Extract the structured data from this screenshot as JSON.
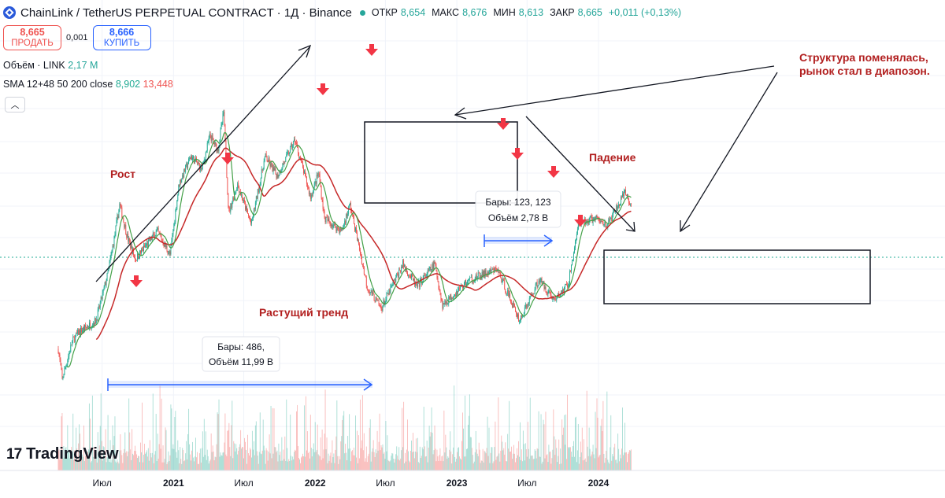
{
  "header": {
    "title": "ChainLink / TetherUS PERPETUAL CONTRACT · 1Д · Binance",
    "ohlc": [
      {
        "key": "ОТКР",
        "value": "8,654"
      },
      {
        "key": "МАКС",
        "value": "8,676"
      },
      {
        "key": "МИН",
        "value": "8,613"
      },
      {
        "key": "ЗАКР",
        "value": "8,665"
      }
    ],
    "change": "+0,011 (+0,13%)"
  },
  "trade": {
    "sell_price": "8,665",
    "sell_label": "ПРОДАТЬ",
    "spread": "0,001",
    "buy_price": "8,666",
    "buy_label": "КУПИТЬ"
  },
  "indicators": {
    "volume_label": "Объём · LINK",
    "volume_value": "2,17 M",
    "sma_label": "SMA 12+48 50 200 close",
    "sma_fast": "8,902",
    "sma_slow": "13,448"
  },
  "logo": {
    "text": "TradingView"
  },
  "colors": {
    "up": "#22ab94",
    "down": "#ef5350",
    "sma_fast": "#43a047",
    "sma_slow": "#c62828",
    "annotation_text": "#b22020",
    "arrow_marker": "#f23645",
    "range_line": "#2962ff"
  },
  "chart_data": {
    "type": "line",
    "instrument": "LINKUSDT.P",
    "timeframe": "1Д",
    "x_ticks": [
      "Июл",
      "2021",
      "Июл",
      "2022",
      "Июл",
      "2023",
      "Июл",
      "2024"
    ],
    "price_path_points": [
      {
        "date": "2020-03-10",
        "price": 3.5
      },
      {
        "date": "2020-03-20",
        "price": 2.5
      },
      {
        "date": "2020-04-15",
        "price": 3.8
      },
      {
        "date": "2020-05-01",
        "price": 4.2
      },
      {
        "date": "2020-06-15",
        "price": 4.8
      },
      {
        "date": "2020-07-15",
        "price": 8.0
      },
      {
        "date": "2020-08-01",
        "price": 12.0
      },
      {
        "date": "2020-08-15",
        "price": 17.5
      },
      {
        "date": "2020-09-05",
        "price": 12.0
      },
      {
        "date": "2020-09-25",
        "price": 9.5
      },
      {
        "date": "2020-10-20",
        "price": 11.0
      },
      {
        "date": "2020-11-20",
        "price": 13.0
      },
      {
        "date": "2020-12-23",
        "price": 10.0
      },
      {
        "date": "2021-01-15",
        "price": 22.0
      },
      {
        "date": "2021-02-15",
        "price": 30.0
      },
      {
        "date": "2021-03-15",
        "price": 26.0
      },
      {
        "date": "2021-04-05",
        "price": 38.0
      },
      {
        "date": "2021-04-25",
        "price": 32.0
      },
      {
        "date": "2021-05-10",
        "price": 49.0
      },
      {
        "date": "2021-05-23",
        "price": 16.0
      },
      {
        "date": "2021-06-15",
        "price": 22.0
      },
      {
        "date": "2021-07-20",
        "price": 14.0
      },
      {
        "date": "2021-08-25",
        "price": 30.0
      },
      {
        "date": "2021-09-25",
        "price": 24.0
      },
      {
        "date": "2021-11-10",
        "price": 36.0
      },
      {
        "date": "2021-12-20",
        "price": 19.0
      },
      {
        "date": "2022-01-10",
        "price": 25.0
      },
      {
        "date": "2022-01-25",
        "price": 15.0
      },
      {
        "date": "2022-03-10",
        "price": 13.0
      },
      {
        "date": "2022-04-01",
        "price": 17.5
      },
      {
        "date": "2022-05-15",
        "price": 7.0
      },
      {
        "date": "2022-06-20",
        "price": 5.5
      },
      {
        "date": "2022-08-15",
        "price": 9.0
      },
      {
        "date": "2022-09-20",
        "price": 7.0
      },
      {
        "date": "2022-11-05",
        "price": 9.0
      },
      {
        "date": "2022-11-25",
        "price": 5.7
      },
      {
        "date": "2023-01-30",
        "price": 7.5
      },
      {
        "date": "2023-04-15",
        "price": 8.5
      },
      {
        "date": "2023-06-12",
        "price": 4.8
      },
      {
        "date": "2023-08-01",
        "price": 7.6
      },
      {
        "date": "2023-09-10",
        "price": 6.0
      },
      {
        "date": "2023-10-15",
        "price": 7.2
      },
      {
        "date": "2023-11-10",
        "price": 14.0
      },
      {
        "date": "2023-12-20",
        "price": 15.0
      },
      {
        "date": "2024-01-25",
        "price": 14.0
      },
      {
        "date": "2024-03-10",
        "price": 20.0
      },
      {
        "date": "2024-03-25",
        "price": 17.0
      }
    ],
    "annotations": {
      "growth": "Рост",
      "growing_trend": "Растущий тренд",
      "decline": "Падение",
      "structure_change": [
        "Структура поменялась,",
        "рынок стал в диапозон."
      ],
      "range1_bars": "Бары: 486,",
      "range1_volume": "Объём 11,99 B",
      "range2_bars": "Бары: 123, 123",
      "range2_volume": "Объём 2,78 B"
    }
  }
}
